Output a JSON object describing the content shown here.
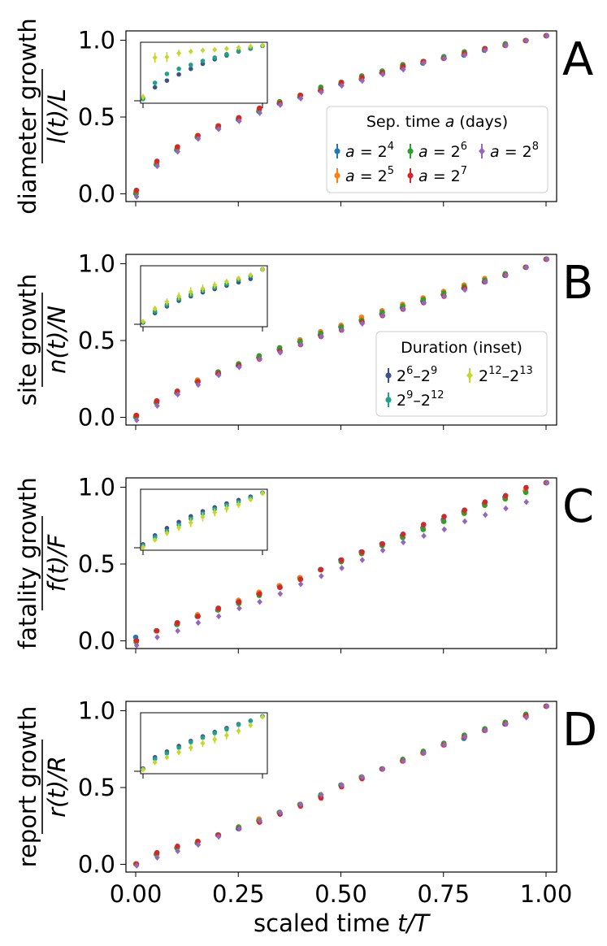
{
  "colors": {
    "a16": "#1f77b4",
    "a32": "#ff7f0e",
    "a64": "#2ca02c",
    "a128": "#d62728",
    "a256": "#9467bd",
    "d_short": "#3b528b",
    "d_mid": "#21a08a",
    "d_long": "#c5d82a"
  },
  "xaxis": {
    "label_prefix": "scaled time ",
    "label_var": "t/T",
    "ticks": [
      "0.00",
      "0.25",
      "0.50",
      "0.75",
      "1.00"
    ],
    "tick_values": [
      0,
      0.25,
      0.5,
      0.75,
      1.0
    ],
    "xlim": [
      -0.025,
      1.025
    ]
  },
  "legend_sep": {
    "title_prefix": "Sep. time ",
    "title_var": "a",
    "title_suffix": " (days)",
    "entries": [
      {
        "var": "a",
        "eq": " = 2",
        "exp": "4",
        "color_key": "a16"
      },
      {
        "var": "a",
        "eq": " = 2",
        "exp": "6",
        "color_key": "a64"
      },
      {
        "var": "a",
        "eq": " = 2",
        "exp": "8",
        "color_key": "a256"
      },
      {
        "var": "a",
        "eq": " = 2",
        "exp": "5",
        "color_key": "a32"
      },
      {
        "var": "a",
        "eq": " = 2",
        "exp": "7",
        "color_key": "a128"
      }
    ]
  },
  "legend_dur": {
    "title": "Duration (inset)",
    "entries": [
      {
        "b1": "2",
        "e1": "6",
        "dash": "–",
        "b2": "2",
        "e2": "9",
        "color_key": "d_short"
      },
      {
        "b1": "2",
        "e1": "12",
        "dash": "–",
        "b2": "2",
        "e2": "13",
        "color_key": "d_long"
      },
      {
        "b1": "2",
        "e1": "9",
        "dash": "–",
        "b2": "2",
        "e2": "12",
        "color_key": "d_mid"
      }
    ]
  },
  "chart_data": [
    {
      "type": "scatter",
      "panel": "A",
      "ylabel_top": "diameter growth",
      "ylabel_frac": "l(t)/L",
      "yticks": [
        "0.0",
        "0.5",
        "1.0"
      ],
      "ylim": [
        -0.03,
        1.03
      ],
      "x": [
        0,
        0.05,
        0.1,
        0.15,
        0.2,
        0.25,
        0.3,
        0.35,
        0.4,
        0.45,
        0.5,
        0.55,
        0.6,
        0.65,
        0.7,
        0.75,
        0.8,
        0.85,
        0.9,
        0.95,
        1.0
      ],
      "series": [
        {
          "name": "a=2^4",
          "color_key": "a16",
          "values": [
            0.02,
            0.2,
            0.29,
            0.37,
            0.43,
            0.48,
            0.53,
            0.58,
            0.62,
            0.66,
            0.7,
            0.73,
            0.77,
            0.8,
            0.83,
            0.86,
            0.88,
            0.91,
            0.94,
            0.97,
            1.0
          ]
        },
        {
          "name": "a=2^5",
          "color_key": "a32",
          "values": [
            0.03,
            0.21,
            0.3,
            0.38,
            0.44,
            0.49,
            0.54,
            0.59,
            0.63,
            0.67,
            0.71,
            0.74,
            0.78,
            0.81,
            0.84,
            0.86,
            0.89,
            0.92,
            0.94,
            0.97,
            1.0
          ]
        },
        {
          "name": "a=2^6",
          "color_key": "a64",
          "values": [
            0.02,
            0.2,
            0.3,
            0.37,
            0.43,
            0.49,
            0.54,
            0.59,
            0.63,
            0.68,
            0.71,
            0.75,
            0.78,
            0.82,
            0.84,
            0.87,
            0.9,
            0.92,
            0.95,
            0.97,
            1.0
          ]
        },
        {
          "name": "a=2^7",
          "color_key": "a128",
          "values": [
            0.04,
            0.22,
            0.31,
            0.38,
            0.44,
            0.49,
            0.55,
            0.58,
            0.63,
            0.66,
            0.71,
            0.74,
            0.77,
            0.81,
            0.84,
            0.86,
            0.89,
            0.92,
            0.94,
            0.97,
            1.0
          ]
        },
        {
          "name": "a=2^8",
          "color_key": "a256",
          "values": [
            0.0,
            0.19,
            0.28,
            0.36,
            0.42,
            0.47,
            0.52,
            0.57,
            0.61,
            0.65,
            0.69,
            0.72,
            0.76,
            0.79,
            0.83,
            0.86,
            0.88,
            0.91,
            0.94,
            0.97,
            1.0
          ]
        }
      ],
      "inset": {
        "x": [
          0,
          0.1,
          0.2,
          0.3,
          0.4,
          0.5,
          0.6,
          0.7,
          0.8,
          0.9,
          1.0
        ],
        "series": [
          {
            "name": "2^6-2^9",
            "color_key": "d_short",
            "values": [
              0.05,
              0.24,
              0.36,
              0.47,
              0.57,
              0.66,
              0.74,
              0.81,
              0.88,
              0.93,
              0.98
            ]
          },
          {
            "name": "2^9-2^12",
            "color_key": "d_mid",
            "values": [
              0.03,
              0.32,
              0.48,
              0.57,
              0.64,
              0.71,
              0.77,
              0.83,
              0.89,
              0.94,
              0.98
            ]
          },
          {
            "name": "2^12-2^13",
            "color_key": "d_long",
            "values": [
              0.07,
              0.77,
              0.78,
              0.85,
              0.88,
              0.9,
              0.91,
              0.93,
              0.95,
              0.97,
              0.99
            ],
            "err": [
              0.05,
              0.09,
              0.09,
              0.06,
              0.04,
              0.03,
              0.03,
              0.02,
              0.02,
              0.02,
              0.01
            ]
          }
        ]
      }
    },
    {
      "type": "scatter",
      "panel": "B",
      "ylabel_top": "site growth",
      "ylabel_frac": "n(t)/N",
      "yticks": [
        "0.0",
        "0.5",
        "1.0"
      ],
      "ylim": [
        -0.03,
        1.03
      ],
      "x": [
        0,
        0.05,
        0.1,
        0.15,
        0.2,
        0.25,
        0.3,
        0.35,
        0.4,
        0.45,
        0.5,
        0.55,
        0.6,
        0.65,
        0.7,
        0.75,
        0.8,
        0.85,
        0.9,
        0.95,
        1.0
      ],
      "series": [
        {
          "name": "a=2^4",
          "color_key": "a16",
          "values": [
            0.02,
            0.11,
            0.17,
            0.24,
            0.29,
            0.34,
            0.39,
            0.44,
            0.49,
            0.53,
            0.58,
            0.62,
            0.66,
            0.7,
            0.74,
            0.78,
            0.82,
            0.86,
            0.9,
            0.95,
            1.0
          ]
        },
        {
          "name": "a=2^5",
          "color_key": "a32",
          "values": [
            0.03,
            0.12,
            0.18,
            0.25,
            0.3,
            0.35,
            0.4,
            0.45,
            0.5,
            0.55,
            0.59,
            0.64,
            0.68,
            0.72,
            0.76,
            0.8,
            0.84,
            0.88,
            0.91,
            0.95,
            1.0
          ]
        },
        {
          "name": "a=2^6",
          "color_key": "a64",
          "values": [
            0.02,
            0.11,
            0.18,
            0.24,
            0.3,
            0.35,
            0.4,
            0.45,
            0.49,
            0.54,
            0.58,
            0.62,
            0.67,
            0.71,
            0.75,
            0.79,
            0.83,
            0.87,
            0.91,
            0.95,
            1.0
          ]
        },
        {
          "name": "a=2^7",
          "color_key": "a128",
          "values": [
            0.03,
            0.12,
            0.18,
            0.24,
            0.29,
            0.34,
            0.38,
            0.43,
            0.47,
            0.52,
            0.56,
            0.61,
            0.65,
            0.69,
            0.73,
            0.77,
            0.82,
            0.86,
            0.9,
            0.95,
            1.0
          ]
        },
        {
          "name": "a=2^8",
          "color_key": "a256",
          "values": [
            0.0,
            0.09,
            0.16,
            0.22,
            0.28,
            0.33,
            0.38,
            0.42,
            0.47,
            0.52,
            0.56,
            0.6,
            0.65,
            0.69,
            0.73,
            0.77,
            0.81,
            0.86,
            0.9,
            0.95,
            1.0
          ]
        }
      ],
      "inset": {
        "x": [
          0,
          0.1,
          0.2,
          0.3,
          0.4,
          0.5,
          0.6,
          0.7,
          0.8,
          0.9,
          1.0
        ],
        "series": [
          {
            "name": "2^6-2^9",
            "color_key": "d_short",
            "values": [
              0.03,
              0.2,
              0.32,
              0.42,
              0.5,
              0.57,
              0.63,
              0.69,
              0.75,
              0.81,
              0.98
            ]
          },
          {
            "name": "2^9-2^12",
            "color_key": "d_mid",
            "values": [
              0.04,
              0.23,
              0.35,
              0.45,
              0.53,
              0.6,
              0.66,
              0.72,
              0.79,
              0.86,
              0.98
            ]
          },
          {
            "name": "2^12-2^13",
            "color_key": "d_long",
            "values": [
              0.05,
              0.28,
              0.4,
              0.5,
              0.58,
              0.64,
              0.7,
              0.76,
              0.82,
              0.88,
              0.98
            ],
            "err": [
              0.03,
              0.05,
              0.06,
              0.07,
              0.08,
              0.07,
              0.06,
              0.05,
              0.04,
              0.03,
              0.01
            ]
          }
        ]
      }
    },
    {
      "type": "scatter",
      "panel": "C",
      "ylabel_top": "fatality growth",
      "ylabel_frac": "f(t)/F",
      "yticks": [
        "0.0",
        "0.5",
        "1.0"
      ],
      "ylim": [
        -0.03,
        1.03
      ],
      "x": [
        0,
        0.05,
        0.1,
        0.15,
        0.2,
        0.25,
        0.3,
        0.35,
        0.4,
        0.45,
        0.5,
        0.55,
        0.6,
        0.65,
        0.7,
        0.75,
        0.8,
        0.85,
        0.9,
        0.95,
        1.0
      ],
      "series": [
        {
          "name": "a=2^4",
          "color_key": "a16",
          "values": [
            0.04,
            0.08,
            0.12,
            0.17,
            0.21,
            0.26,
            0.31,
            0.36,
            0.41,
            0.46,
            0.52,
            0.57,
            0.62,
            0.67,
            0.72,
            0.77,
            0.82,
            0.87,
            0.91,
            0.95,
            1.0
          ]
        },
        {
          "name": "a=2^5",
          "color_key": "a32",
          "values": [
            0.02,
            0.08,
            0.13,
            0.18,
            0.22,
            0.27,
            0.32,
            0.36,
            0.41,
            0.46,
            0.51,
            0.56,
            0.61,
            0.66,
            0.71,
            0.76,
            0.81,
            0.86,
            0.9,
            0.95,
            1.0
          ]
        },
        {
          "name": "a=2^6",
          "color_key": "a64",
          "values": [
            0.01,
            0.08,
            0.12,
            0.17,
            0.21,
            0.25,
            0.3,
            0.35,
            0.4,
            0.46,
            0.51,
            0.56,
            0.61,
            0.66,
            0.71,
            0.76,
            0.81,
            0.86,
            0.9,
            0.94,
            1.0
          ]
        },
        {
          "name": "a=2^7",
          "color_key": "a128",
          "values": [
            0.02,
            0.08,
            0.13,
            0.17,
            0.22,
            0.26,
            0.31,
            0.35,
            0.4,
            0.46,
            0.52,
            0.57,
            0.62,
            0.68,
            0.74,
            0.79,
            0.83,
            0.88,
            0.92,
            0.97,
            1.0
          ]
        },
        {
          "name": "a=2^8",
          "color_key": "a256",
          "values": [
            -0.01,
            0.04,
            0.08,
            0.13,
            0.17,
            0.22,
            0.26,
            0.31,
            0.37,
            0.42,
            0.47,
            0.52,
            0.58,
            0.63,
            0.67,
            0.71,
            0.76,
            0.8,
            0.84,
            0.88,
            1.0
          ]
        }
      ],
      "inset": {
        "x": [
          0,
          0.1,
          0.2,
          0.3,
          0.4,
          0.5,
          0.6,
          0.7,
          0.8,
          0.9,
          1.0
        ],
        "series": [
          {
            "name": "2^6-2^9",
            "color_key": "d_short",
            "values": [
              0.06,
              0.22,
              0.35,
              0.46,
              0.56,
              0.65,
              0.72,
              0.79,
              0.85,
              0.91,
              0.98
            ]
          },
          {
            "name": "2^9-2^12",
            "color_key": "d_mid",
            "values": [
              0.04,
              0.19,
              0.3,
              0.41,
              0.52,
              0.61,
              0.69,
              0.76,
              0.82,
              0.89,
              0.98
            ]
          },
          {
            "name": "2^12-2^13",
            "color_key": "d_long",
            "values": [
              0.01,
              0.14,
              0.26,
              0.36,
              0.45,
              0.55,
              0.63,
              0.7,
              0.77,
              0.86,
              0.97
            ],
            "err": [
              0.02,
              0.03,
              0.05,
              0.06,
              0.08,
              0.08,
              0.07,
              0.07,
              0.06,
              0.04,
              0.01
            ]
          }
        ]
      }
    },
    {
      "type": "scatter",
      "panel": "D",
      "ylabel_top": "report growth",
      "ylabel_frac": "r(t)/R",
      "yticks": [
        "0.0",
        "0.5",
        "1.0"
      ],
      "ylim": [
        -0.03,
        1.03
      ],
      "x": [
        0,
        0.05,
        0.1,
        0.15,
        0.2,
        0.25,
        0.3,
        0.35,
        0.4,
        0.45,
        0.5,
        0.55,
        0.6,
        0.65,
        0.7,
        0.75,
        0.8,
        0.85,
        0.9,
        0.95,
        1.0
      ],
      "series": [
        {
          "name": "a=2^4",
          "color_key": "a16",
          "values": [
            0.02,
            0.08,
            0.12,
            0.15,
            0.2,
            0.24,
            0.29,
            0.34,
            0.39,
            0.44,
            0.51,
            0.56,
            0.61,
            0.66,
            0.71,
            0.76,
            0.8,
            0.85,
            0.89,
            0.94,
            1.0
          ]
        },
        {
          "name": "a=2^5",
          "color_key": "a32",
          "values": [
            0.02,
            0.08,
            0.12,
            0.16,
            0.2,
            0.25,
            0.3,
            0.34,
            0.39,
            0.44,
            0.51,
            0.56,
            0.61,
            0.66,
            0.71,
            0.76,
            0.81,
            0.85,
            0.9,
            0.94,
            1.0
          ]
        },
        {
          "name": "a=2^6",
          "color_key": "a64",
          "values": [
            0.02,
            0.08,
            0.12,
            0.16,
            0.2,
            0.25,
            0.29,
            0.34,
            0.39,
            0.45,
            0.51,
            0.56,
            0.61,
            0.67,
            0.72,
            0.77,
            0.82,
            0.86,
            0.9,
            0.95,
            1.0
          ]
        },
        {
          "name": "a=2^7",
          "color_key": "a128",
          "values": [
            0.02,
            0.09,
            0.13,
            0.16,
            0.2,
            0.24,
            0.28,
            0.33,
            0.38,
            0.43,
            0.5,
            0.55,
            0.61,
            0.66,
            0.71,
            0.76,
            0.81,
            0.85,
            0.89,
            0.94,
            1.0
          ]
        },
        {
          "name": "a=2^8",
          "color_key": "a256",
          "values": [
            0.01,
            0.06,
            0.1,
            0.14,
            0.19,
            0.24,
            0.29,
            0.34,
            0.39,
            0.45,
            0.51,
            0.56,
            0.61,
            0.66,
            0.71,
            0.76,
            0.81,
            0.85,
            0.89,
            0.93,
            1.0
          ]
        }
      ],
      "inset": {
        "x": [
          0,
          0.1,
          0.2,
          0.3,
          0.4,
          0.5,
          0.6,
          0.7,
          0.8,
          0.9,
          1.0
        ],
        "series": [
          {
            "name": "2^6-2^9",
            "color_key": "d_short",
            "values": [
              0.05,
              0.25,
              0.35,
              0.45,
              0.54,
              0.62,
              0.7,
              0.77,
              0.84,
              0.9,
              0.98
            ]
          },
          {
            "name": "2^9-2^12",
            "color_key": "d_mid",
            "values": [
              0.04,
              0.22,
              0.32,
              0.42,
              0.52,
              0.6,
              0.68,
              0.75,
              0.83,
              0.9,
              0.98
            ]
          },
          {
            "name": "2^12-2^13",
            "color_key": "d_long",
            "values": [
              0.03,
              0.16,
              0.25,
              0.34,
              0.42,
              0.5,
              0.57,
              0.64,
              0.72,
              0.82,
              0.97
            ],
            "err": [
              0.02,
              0.03,
              0.04,
              0.05,
              0.06,
              0.07,
              0.07,
              0.07,
              0.06,
              0.04,
              0.01
            ]
          }
        ]
      }
    }
  ]
}
